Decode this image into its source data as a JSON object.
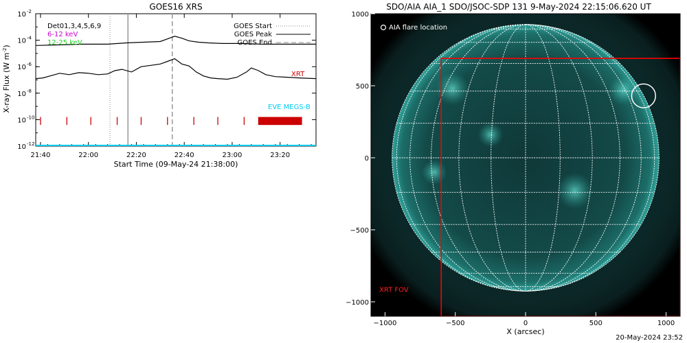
{
  "chart_data": [
    {
      "type": "line",
      "title": "GOES16 XRS",
      "xlabel": "Start Time (09-May-24 21:38:00)",
      "ylabel_main": "X-ray Flux (W m",
      "ylabel_exp": "-2",
      "ylabel_close": ")",
      "x_unit": "minutes since 21:38",
      "xlim": [
        0,
        117
      ],
      "ylim_log10": [
        -12,
        -2
      ],
      "y_scale": "log",
      "x_ticks": [
        {
          "t": 2,
          "label": "21:40"
        },
        {
          "t": 22,
          "label": "22:00"
        },
        {
          "t": 42,
          "label": "22:20"
        },
        {
          "t": 62,
          "label": "22:40"
        },
        {
          "t": 82,
          "label": "23:00"
        },
        {
          "t": 102,
          "label": "23:20"
        }
      ],
      "y_ticks": [
        {
          "exp": -2,
          "label": "10",
          "sup": "-2"
        },
        {
          "exp": -4,
          "label": "10",
          "sup": "-4"
        },
        {
          "exp": -6,
          "label": "10",
          "sup": "-6"
        },
        {
          "exp": -8,
          "label": "10",
          "sup": "-8"
        },
        {
          "exp": -10,
          "label": "10",
          "sup": "-10"
        },
        {
          "exp": -12,
          "label": "10",
          "sup": "-12"
        }
      ],
      "legend_left": [
        {
          "label": "Det01,3,4,5,6,9",
          "color": "#000000"
        },
        {
          "label": "6-12 keV",
          "color": "#cc00cc"
        },
        {
          "label": "12-25 keV",
          "color": "#22cc22"
        }
      ],
      "legend_right": [
        {
          "label": "GOES Start",
          "style": "dotted"
        },
        {
          "label": "GOES Peak",
          "style": "solid"
        },
        {
          "label": "GOES End",
          "style": "dashed"
        }
      ],
      "goes_start_t": 31,
      "goes_peak_t": 38.5,
      "goes_end_t": 57,
      "series": [
        {
          "name": "GOES long",
          "color": "#000000",
          "x": [
            0,
            10,
            20,
            30,
            38,
            45,
            52,
            55,
            58,
            61,
            64,
            68,
            72,
            78,
            85,
            95,
            105,
            117
          ],
          "log10": [
            -4.4,
            -4.35,
            -4.3,
            -4.3,
            -4.2,
            -4.15,
            -4.1,
            -3.9,
            -3.7,
            -3.85,
            -4.05,
            -4.15,
            -4.2,
            -4.25,
            -4.25,
            -4.3,
            -4.3,
            -4.3
          ]
        },
        {
          "name": "GOES short",
          "color": "#000000",
          "x": [
            0,
            3,
            6,
            10,
            14,
            18,
            22,
            26,
            30,
            33,
            36,
            40,
            44,
            48,
            52,
            55,
            58,
            61,
            64,
            67,
            70,
            73,
            76,
            80,
            84,
            88,
            90,
            93,
            96,
            100,
            105,
            110,
            117
          ],
          "log10": [
            -6.9,
            -6.85,
            -6.7,
            -6.5,
            -6.6,
            -6.45,
            -6.5,
            -6.6,
            -6.55,
            -6.3,
            -6.2,
            -6.4,
            -6.0,
            -5.9,
            -5.8,
            -5.6,
            -5.4,
            -5.8,
            -5.95,
            -6.4,
            -6.7,
            -6.85,
            -6.9,
            -6.95,
            -6.8,
            -6.4,
            -6.1,
            -6.3,
            -6.6,
            -6.75,
            -6.8,
            -6.85,
            -6.9
          ]
        }
      ],
      "xrt_marks_t": [
        2,
        13,
        23,
        34,
        44,
        55,
        66,
        76,
        87
      ],
      "xrt_dense_span": [
        93,
        111
      ],
      "xrt_mark_count_dense": 110,
      "xrt_label": "XRT",
      "xrt_label_t": 113,
      "xrt_label_log10": -6.5,
      "eve_label": "EVE MEGS-B",
      "eve_label_log10": -9.0,
      "baseline_color": "#00ccee"
    },
    {
      "type": "scatter",
      "title": "SDO/AIA AIA_1 SDO/JSOC-SDP 131  9-May-2024 22:15:06.620 UT",
      "xlabel": "X (arcsec)",
      "ylabel": "",
      "xlim": [
        -1100,
        1100
      ],
      "ylim": [
        -1100,
        1000
      ],
      "x_ticks": [
        -1000,
        -500,
        0,
        500,
        1000
      ],
      "y_ticks": [
        1000,
        500,
        0,
        -500,
        -1000
      ],
      "tick_labels_x": [
        "−1000",
        "−500",
        "0",
        "500",
        "1000"
      ],
      "tick_labels_y": [
        "1000",
        "500",
        "0",
        "−500",
        "−1000"
      ],
      "solar_radius_arcsec": 950,
      "legend_label": "AIA flare location",
      "flare_location": {
        "x": 840,
        "y": 430,
        "r": 85
      },
      "xrt_fov": {
        "x1": -600,
        "x2": 1100,
        "y1": -1100,
        "y2": 690
      },
      "xrt_fov_label": "XRT FOV",
      "xrt_fov_color": "#ff0000"
    }
  ],
  "footer": {
    "timestamp": "20-May-2024 23:52"
  }
}
